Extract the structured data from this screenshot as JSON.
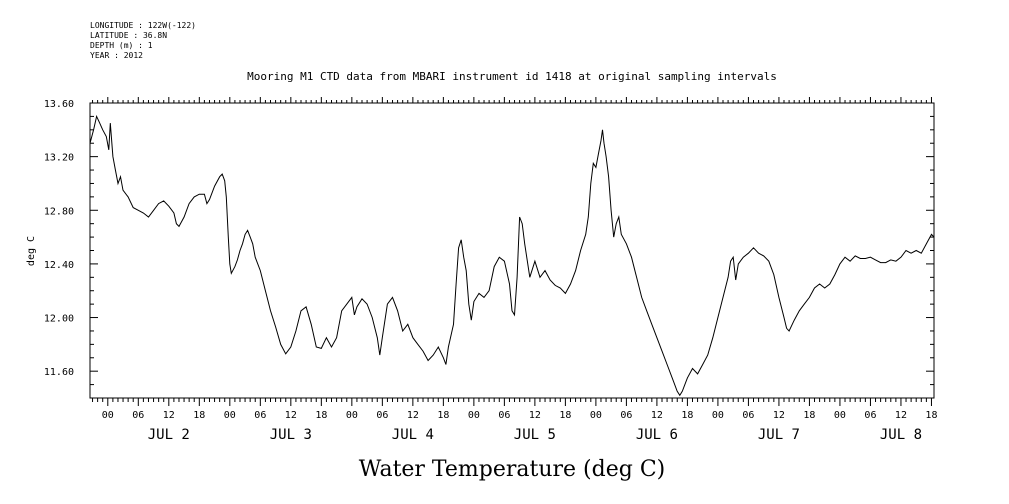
{
  "meta": {
    "longitude": "LONGITUDE : 122W(-122)",
    "latitude": "LATITUDE : 36.8N",
    "depth": "DEPTH (m) : 1",
    "year": "YEAR : 2012"
  },
  "chart_data": {
    "type": "line",
    "title": "Mooring M1 CTD data from MBARI instrument id 1418 at original sampling intervals",
    "xlabel": "Water Temperature (deg C)",
    "ylabel": "deg C",
    "ylim": [
      11.4,
      13.6
    ],
    "y_ticks": [
      "11.60",
      "12.00",
      "12.40",
      "12.80",
      "13.20",
      "13.60"
    ],
    "x_tick_labels": [
      "00",
      "06",
      "12",
      "18",
      "00",
      "06",
      "12",
      "18",
      "00",
      "06",
      "12",
      "18",
      "00",
      "06",
      "12",
      "18",
      "00",
      "06",
      "12",
      "18",
      "00",
      "06",
      "12",
      "18",
      "00",
      "06",
      "12",
      "18"
    ],
    "day_labels": [
      "JUL 2",
      "JUL 3",
      "JUL 4",
      "JUL 5",
      "JUL 6",
      "JUL 7",
      "JUL 8"
    ],
    "x_unit": "hours since JUL 2 00:00",
    "xlim": [
      -3.5,
      162.5
    ],
    "grid": false,
    "series": [
      {
        "points": [
          [
            -3.5,
            13.3
          ],
          [
            -2.8,
            13.4
          ],
          [
            -2.2,
            13.5
          ],
          [
            -1.6,
            13.45
          ],
          [
            -1.0,
            13.4
          ],
          [
            -0.3,
            13.35
          ],
          [
            0.2,
            13.25
          ],
          [
            0.5,
            13.45
          ],
          [
            1.0,
            13.2
          ],
          [
            1.5,
            13.1
          ],
          [
            2.0,
            13.0
          ],
          [
            2.5,
            13.05
          ],
          [
            3.0,
            12.95
          ],
          [
            4.0,
            12.9
          ],
          [
            5.0,
            12.82
          ],
          [
            6.0,
            12.8
          ],
          [
            7.0,
            12.78
          ],
          [
            8.0,
            12.75
          ],
          [
            9.0,
            12.8
          ],
          [
            10.0,
            12.85
          ],
          [
            11.0,
            12.87
          ],
          [
            12.0,
            12.83
          ],
          [
            13.0,
            12.78
          ],
          [
            13.5,
            12.7
          ],
          [
            14.0,
            12.68
          ],
          [
            15.0,
            12.75
          ],
          [
            16.0,
            12.85
          ],
          [
            17.0,
            12.9
          ],
          [
            18.0,
            12.92
          ],
          [
            19.0,
            12.92
          ],
          [
            19.5,
            12.85
          ],
          [
            20.0,
            12.88
          ],
          [
            21.0,
            12.98
          ],
          [
            22.0,
            13.05
          ],
          [
            22.5,
            13.07
          ],
          [
            23.0,
            13.02
          ],
          [
            23.3,
            12.9
          ],
          [
            23.7,
            12.6
          ],
          [
            24.0,
            12.4
          ],
          [
            24.3,
            12.33
          ],
          [
            25.0,
            12.38
          ],
          [
            25.5,
            12.43
          ],
          [
            26.0,
            12.5
          ],
          [
            26.5,
            12.55
          ],
          [
            27.0,
            12.62
          ],
          [
            27.5,
            12.65
          ],
          [
            28.0,
            12.6
          ],
          [
            28.5,
            12.55
          ],
          [
            29.0,
            12.45
          ],
          [
            30.0,
            12.35
          ],
          [
            31.0,
            12.2
          ],
          [
            32.0,
            12.05
          ],
          [
            33.0,
            11.93
          ],
          [
            34.0,
            11.8
          ],
          [
            35.0,
            11.73
          ],
          [
            36.0,
            11.78
          ],
          [
            37.0,
            11.9
          ],
          [
            38.0,
            12.05
          ],
          [
            39.0,
            12.08
          ],
          [
            40.0,
            11.95
          ],
          [
            41.0,
            11.78
          ],
          [
            42.0,
            11.77
          ],
          [
            43.0,
            11.85
          ],
          [
            44.0,
            11.78
          ],
          [
            45.0,
            11.85
          ],
          [
            46.0,
            12.05
          ],
          [
            47.0,
            12.1
          ],
          [
            48.0,
            12.15
          ],
          [
            48.5,
            12.02
          ],
          [
            49.0,
            12.08
          ],
          [
            50.0,
            12.14
          ],
          [
            51.0,
            12.1
          ],
          [
            52.0,
            12.0
          ],
          [
            53.0,
            11.85
          ],
          [
            53.5,
            11.72
          ],
          [
            54.0,
            11.85
          ],
          [
            55.0,
            12.1
          ],
          [
            56.0,
            12.15
          ],
          [
            57.0,
            12.05
          ],
          [
            58.0,
            11.9
          ],
          [
            59.0,
            11.95
          ],
          [
            60.0,
            11.85
          ],
          [
            61.0,
            11.8
          ],
          [
            62.0,
            11.75
          ],
          [
            63.0,
            11.68
          ],
          [
            64.0,
            11.72
          ],
          [
            65.0,
            11.78
          ],
          [
            66.0,
            11.7
          ],
          [
            66.5,
            11.65
          ],
          [
            67.0,
            11.78
          ],
          [
            68.0,
            11.95
          ],
          [
            68.5,
            12.25
          ],
          [
            69.0,
            12.52
          ],
          [
            69.5,
            12.58
          ],
          [
            70.0,
            12.45
          ],
          [
            70.5,
            12.35
          ],
          [
            71.0,
            12.1
          ],
          [
            71.5,
            11.98
          ],
          [
            72.0,
            12.12
          ],
          [
            73.0,
            12.18
          ],
          [
            74.0,
            12.15
          ],
          [
            75.0,
            12.2
          ],
          [
            76.0,
            12.38
          ],
          [
            77.0,
            12.45
          ],
          [
            78.0,
            12.42
          ],
          [
            79.0,
            12.25
          ],
          [
            79.5,
            12.05
          ],
          [
            80.0,
            12.02
          ],
          [
            80.5,
            12.3
          ],
          [
            81.0,
            12.75
          ],
          [
            81.5,
            12.7
          ],
          [
            82.0,
            12.55
          ],
          [
            83.0,
            12.3
          ],
          [
            84.0,
            12.42
          ],
          [
            85.0,
            12.3
          ],
          [
            86.0,
            12.35
          ],
          [
            87.0,
            12.28
          ],
          [
            88.0,
            12.24
          ],
          [
            89.0,
            12.22
          ],
          [
            90.0,
            12.18
          ],
          [
            91.0,
            12.25
          ],
          [
            92.0,
            12.35
          ],
          [
            93.0,
            12.5
          ],
          [
            94.0,
            12.62
          ],
          [
            94.5,
            12.75
          ],
          [
            95.0,
            13.0
          ],
          [
            95.5,
            13.15
          ],
          [
            96.0,
            13.12
          ],
          [
            96.5,
            13.22
          ],
          [
            97.0,
            13.32
          ],
          [
            97.3,
            13.4
          ],
          [
            97.6,
            13.3
          ],
          [
            98.0,
            13.2
          ],
          [
            98.5,
            13.05
          ],
          [
            99.0,
            12.8
          ],
          [
            99.5,
            12.6
          ],
          [
            100.0,
            12.7
          ],
          [
            100.5,
            12.75
          ],
          [
            101.0,
            12.62
          ],
          [
            102.0,
            12.55
          ],
          [
            103.0,
            12.45
          ],
          [
            104.0,
            12.3
          ],
          [
            105.0,
            12.15
          ],
          [
            106.0,
            12.05
          ],
          [
            107.0,
            11.95
          ],
          [
            108.0,
            11.85
          ],
          [
            109.0,
            11.75
          ],
          [
            110.0,
            11.65
          ],
          [
            111.0,
            11.55
          ],
          [
            112.0,
            11.45
          ],
          [
            112.5,
            11.42
          ],
          [
            113.0,
            11.45
          ],
          [
            114.0,
            11.55
          ],
          [
            115.0,
            11.62
          ],
          [
            116.0,
            11.58
          ],
          [
            117.0,
            11.65
          ],
          [
            118.0,
            11.72
          ],
          [
            119.0,
            11.85
          ],
          [
            120.0,
            12.0
          ],
          [
            121.0,
            12.15
          ],
          [
            122.0,
            12.3
          ],
          [
            122.5,
            12.42
          ],
          [
            123.0,
            12.45
          ],
          [
            123.5,
            12.28
          ],
          [
            124.0,
            12.4
          ],
          [
            125.0,
            12.45
          ],
          [
            126.0,
            12.48
          ],
          [
            127.0,
            12.52
          ],
          [
            128.0,
            12.48
          ],
          [
            129.0,
            12.46
          ],
          [
            130.0,
            12.42
          ],
          [
            131.0,
            12.32
          ],
          [
            132.0,
            12.15
          ],
          [
            133.0,
            12.0
          ],
          [
            133.5,
            11.92
          ],
          [
            134.0,
            11.9
          ],
          [
            135.0,
            11.98
          ],
          [
            136.0,
            12.05
          ],
          [
            137.0,
            12.1
          ],
          [
            138.0,
            12.15
          ],
          [
            139.0,
            12.22
          ],
          [
            140.0,
            12.25
          ],
          [
            141.0,
            12.22
          ],
          [
            142.0,
            12.25
          ],
          [
            143.0,
            12.32
          ],
          [
            144.0,
            12.4
          ],
          [
            145.0,
            12.45
          ],
          [
            146.0,
            12.42
          ],
          [
            147.0,
            12.46
          ],
          [
            148.0,
            12.44
          ],
          [
            149.0,
            12.44
          ],
          [
            150.0,
            12.45
          ],
          [
            151.0,
            12.43
          ],
          [
            152.0,
            12.41
          ],
          [
            153.0,
            12.41
          ],
          [
            154.0,
            12.43
          ],
          [
            155.0,
            12.42
          ],
          [
            156.0,
            12.45
          ],
          [
            157.0,
            12.5
          ],
          [
            158.0,
            12.48
          ],
          [
            159.0,
            12.5
          ],
          [
            160.0,
            12.48
          ],
          [
            161.0,
            12.55
          ],
          [
            162.0,
            12.62
          ],
          [
            162.5,
            12.6
          ]
        ]
      }
    ]
  }
}
